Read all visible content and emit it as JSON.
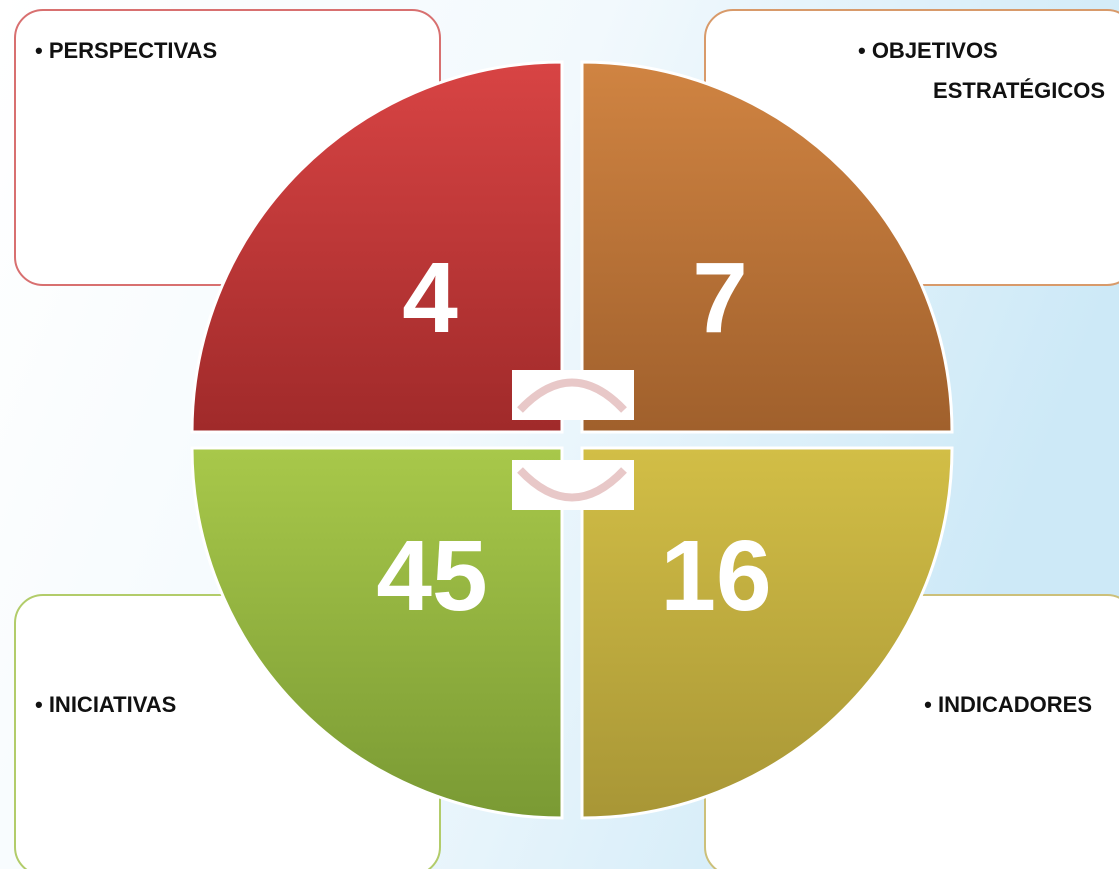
{
  "quadrants": [
    {
      "label": "• PERSPECTIVAS",
      "value": 4
    },
    {
      "label": "• OBJETIVOS",
      "label_line2": "ESTRATÉGICOS",
      "value": 7
    },
    {
      "label": "• INICIATIVAS",
      "value": 45
    },
    {
      "label": "• INDICADORES",
      "value": 16
    }
  ]
}
